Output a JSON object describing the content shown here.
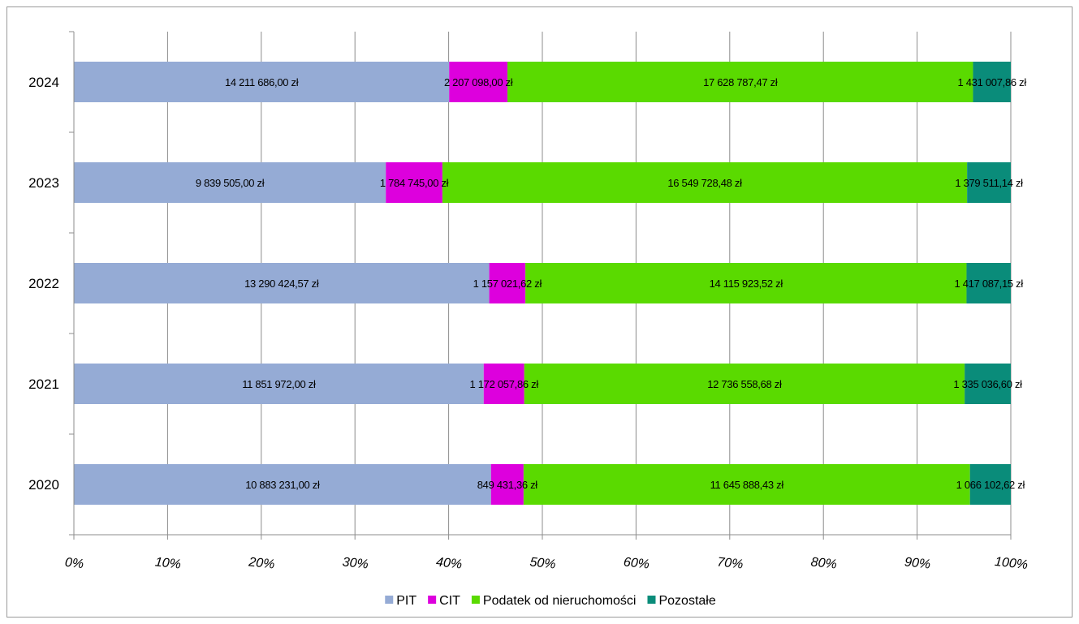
{
  "chart_data": {
    "type": "bar",
    "orientation": "horizontal",
    "stacked": "percent",
    "categories": [
      "2024",
      "2023",
      "2022",
      "2021",
      "2020"
    ],
    "series": [
      {
        "name": "PIT",
        "color": "#95abd5",
        "values": [
          14211686.0,
          9839505.0,
          13290424.57,
          11851972.0,
          10883231.0
        ],
        "labels": [
          "14 211 686,00 zł",
          "9 839 505,00 zł",
          "13 290 424,57 zł",
          "11 851 972,00 zł",
          "10 883 231,00 zł"
        ]
      },
      {
        "name": "CIT",
        "color": "#dd00dd",
        "values": [
          2207098.0,
          1784745.0,
          1157021.62,
          1172057.86,
          849431.36
        ],
        "labels": [
          "2 207 098,00 zł",
          "1 784 745,00 zł",
          "1 157 021,62 zł",
          "1 172 057,86 zł",
          "849 431,36 zł"
        ]
      },
      {
        "name": "Podatek od nieruchomości",
        "color": "#5ada00",
        "values": [
          17628787.47,
          16549728.48,
          14115923.52,
          12736558.68,
          11645888.43
        ],
        "labels": [
          "17 628 787,47 zł",
          "16 549 728,48 zł",
          "14 115 923,52 zł",
          "12 736 558,68 zł",
          "11 645 888,43 zł"
        ]
      },
      {
        "name": "Pozostałe",
        "color": "#0a8c7a",
        "values": [
          1431007.86,
          1379511.14,
          1417087.15,
          1335036.6,
          1066102.62
        ],
        "labels": [
          "1 431 007,86 zł",
          "1 379 511,14 zł",
          "1 417 087,15 zł",
          "1 335 036,60 zł",
          "1 066 102,62 zł"
        ]
      }
    ],
    "x_ticks": [
      "0%",
      "10%",
      "20%",
      "30%",
      "40%",
      "50%",
      "60%",
      "70%",
      "80%",
      "90%",
      "100%"
    ],
    "xlim": [
      0,
      100
    ],
    "title": "",
    "xlabel": "",
    "ylabel": "",
    "grid": "vertical",
    "legend": "bottom"
  }
}
